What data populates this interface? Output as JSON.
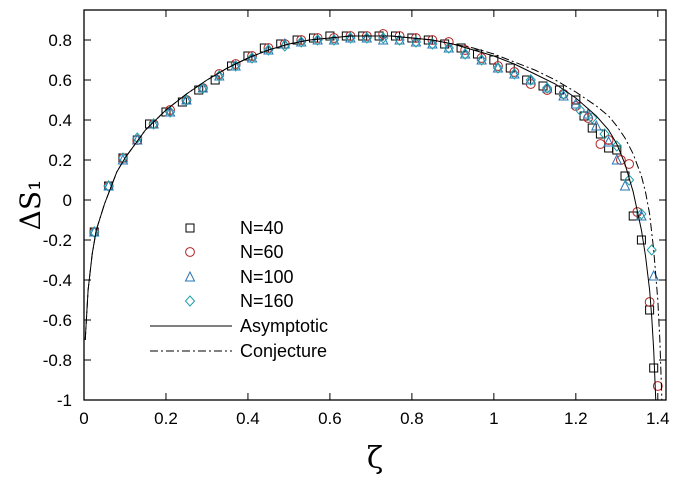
{
  "chart_data": {
    "type": "scatter",
    "title": "",
    "xlabel": "ζ",
    "ylabel": "ΔS₁",
    "xlim": [
      0,
      1.42
    ],
    "ylim": [
      -1,
      0.95
    ],
    "xticks": [
      0,
      0.2,
      0.4,
      0.6,
      0.8,
      1,
      1.2,
      1.4
    ],
    "xtick_labels": [
      "0",
      "0.2",
      "0.4",
      "0.6",
      "0.8",
      "1",
      "1.2",
      "1.4"
    ],
    "yticks": [
      -1,
      -0.8,
      -0.6,
      -0.4,
      -0.2,
      0,
      0.2,
      0.4,
      0.6,
      0.8
    ],
    "ytick_labels": [
      "-1",
      "-0.8",
      "-0.6",
      "-0.4",
      "-0.2",
      "0",
      "0.2",
      "0.4",
      "0.6",
      "0.8"
    ],
    "grid": false,
    "legend_position": "lower-left",
    "series": [
      {
        "name": "N=40",
        "kind": "markers",
        "marker": "square",
        "color": "#000000",
        "x": [
          0.025,
          0.06,
          0.095,
          0.13,
          0.16,
          0.2,
          0.24,
          0.28,
          0.32,
          0.36,
          0.4,
          0.44,
          0.48,
          0.52,
          0.56,
          0.6,
          0.64,
          0.68,
          0.72,
          0.76,
          0.8,
          0.84,
          0.88,
          0.92,
          0.96,
          1.0,
          1.04,
          1.08,
          1.12,
          1.16,
          1.2,
          1.22,
          1.24,
          1.26,
          1.28,
          1.3,
          1.32,
          1.34,
          1.36,
          1.38,
          1.39
        ],
        "y": [
          -0.16,
          0.07,
          0.21,
          0.3,
          0.38,
          0.44,
          0.49,
          0.55,
          0.6,
          0.67,
          0.72,
          0.76,
          0.78,
          0.8,
          0.81,
          0.82,
          0.82,
          0.82,
          0.82,
          0.82,
          0.81,
          0.8,
          0.78,
          0.76,
          0.73,
          0.7,
          0.66,
          0.6,
          0.57,
          0.55,
          0.5,
          0.42,
          0.36,
          0.33,
          0.26,
          0.25,
          0.12,
          -0.08,
          -0.2,
          -0.55,
          -0.84
        ]
      },
      {
        "name": "N=60",
        "kind": "markers",
        "marker": "circle",
        "color": "#b22222",
        "x": [
          0.025,
          0.06,
          0.095,
          0.13,
          0.17,
          0.21,
          0.25,
          0.29,
          0.33,
          0.37,
          0.41,
          0.45,
          0.49,
          0.53,
          0.57,
          0.61,
          0.65,
          0.69,
          0.73,
          0.77,
          0.81,
          0.85,
          0.89,
          0.93,
          0.97,
          1.01,
          1.05,
          1.09,
          1.13,
          1.17,
          1.2,
          1.23,
          1.26,
          1.28,
          1.31,
          1.33,
          1.35,
          1.38,
          1.4
        ],
        "y": [
          -0.16,
          0.07,
          0.21,
          0.3,
          0.38,
          0.45,
          0.5,
          0.56,
          0.63,
          0.68,
          0.72,
          0.76,
          0.78,
          0.8,
          0.81,
          0.81,
          0.82,
          0.82,
          0.83,
          0.82,
          0.81,
          0.8,
          0.79,
          0.75,
          0.71,
          0.67,
          0.64,
          0.58,
          0.55,
          0.53,
          0.47,
          0.41,
          0.28,
          0.3,
          0.2,
          0.18,
          -0.06,
          -0.51,
          -0.93
        ]
      },
      {
        "name": "N=100",
        "kind": "markers",
        "marker": "triangle",
        "color": "#2a74b6",
        "x": [
          0.025,
          0.06,
          0.095,
          0.13,
          0.17,
          0.21,
          0.25,
          0.29,
          0.33,
          0.37,
          0.41,
          0.45,
          0.49,
          0.53,
          0.57,
          0.61,
          0.65,
          0.69,
          0.73,
          0.77,
          0.81,
          0.85,
          0.89,
          0.93,
          0.97,
          1.01,
          1.05,
          1.09,
          1.13,
          1.17,
          1.2,
          1.23,
          1.25,
          1.28,
          1.3,
          1.32,
          1.36,
          1.39
        ],
        "y": [
          -0.16,
          0.07,
          0.2,
          0.3,
          0.38,
          0.44,
          0.5,
          0.56,
          0.62,
          0.67,
          0.71,
          0.75,
          0.78,
          0.79,
          0.8,
          0.8,
          0.81,
          0.81,
          0.8,
          0.8,
          0.79,
          0.78,
          0.76,
          0.73,
          0.7,
          0.66,
          0.63,
          0.6,
          0.56,
          0.52,
          0.48,
          0.43,
          0.37,
          0.29,
          0.2,
          0.07,
          -0.08,
          -0.38
        ]
      },
      {
        "name": "N=160",
        "kind": "markers",
        "marker": "diamond",
        "color": "#20a0a8",
        "x": [
          0.025,
          0.06,
          0.095,
          0.13,
          0.17,
          0.21,
          0.25,
          0.29,
          0.33,
          0.37,
          0.41,
          0.45,
          0.49,
          0.53,
          0.57,
          0.61,
          0.65,
          0.69,
          0.73,
          0.77,
          0.81,
          0.85,
          0.89,
          0.93,
          0.97,
          1.01,
          1.05,
          1.09,
          1.13,
          1.17,
          1.21,
          1.24,
          1.27,
          1.3,
          1.33,
          1.36,
          1.385
        ],
        "y": [
          -0.16,
          0.07,
          0.21,
          0.31,
          0.38,
          0.44,
          0.5,
          0.56,
          0.62,
          0.67,
          0.71,
          0.75,
          0.77,
          0.79,
          0.8,
          0.8,
          0.81,
          0.81,
          0.81,
          0.8,
          0.79,
          0.78,
          0.76,
          0.73,
          0.7,
          0.66,
          0.63,
          0.6,
          0.56,
          0.53,
          0.45,
          0.41,
          0.33,
          0.27,
          0.1,
          -0.07,
          -0.25
        ]
      },
      {
        "name": "Asymptotic",
        "kind": "line",
        "dash": "solid",
        "color": "#000000",
        "x": [
          0.003,
          0.01,
          0.02,
          0.03,
          0.05,
          0.08,
          0.1,
          0.15,
          0.2,
          0.25,
          0.3,
          0.35,
          0.4,
          0.45,
          0.5,
          0.55,
          0.6,
          0.65,
          0.7,
          0.75,
          0.8,
          0.85,
          0.9,
          0.95,
          1.0,
          1.05,
          1.1,
          1.15,
          1.2,
          1.25,
          1.28,
          1.3,
          1.32,
          1.34,
          1.36,
          1.37,
          1.38,
          1.385,
          1.39,
          1.395
        ],
        "y": [
          -0.7,
          -0.45,
          -0.27,
          -0.15,
          -0.02,
          0.14,
          0.21,
          0.35,
          0.45,
          0.53,
          0.6,
          0.66,
          0.71,
          0.75,
          0.78,
          0.8,
          0.81,
          0.82,
          0.82,
          0.82,
          0.81,
          0.8,
          0.78,
          0.75,
          0.72,
          0.68,
          0.63,
          0.58,
          0.51,
          0.42,
          0.35,
          0.28,
          0.18,
          0.04,
          -0.15,
          -0.28,
          -0.45,
          -0.58,
          -0.75,
          -1.0
        ]
      },
      {
        "name": "Conjecture",
        "kind": "line",
        "dash": "dashdot",
        "color": "#000000",
        "x": [
          0.003,
          0.01,
          0.02,
          0.03,
          0.05,
          0.08,
          0.1,
          0.15,
          0.2,
          0.25,
          0.3,
          0.35,
          0.4,
          0.45,
          0.5,
          0.55,
          0.6,
          0.65,
          0.7,
          0.75,
          0.8,
          0.85,
          0.9,
          0.95,
          1.0,
          1.05,
          1.1,
          1.15,
          1.2,
          1.25,
          1.28,
          1.3,
          1.32,
          1.34,
          1.36,
          1.37,
          1.38,
          1.39,
          1.4,
          1.405,
          1.41
        ],
        "y": [
          -0.7,
          -0.45,
          -0.27,
          -0.15,
          -0.02,
          0.14,
          0.21,
          0.35,
          0.45,
          0.53,
          0.6,
          0.66,
          0.71,
          0.75,
          0.78,
          0.8,
          0.81,
          0.82,
          0.82,
          0.82,
          0.81,
          0.8,
          0.78,
          0.76,
          0.73,
          0.69,
          0.65,
          0.6,
          0.54,
          0.47,
          0.42,
          0.37,
          0.31,
          0.23,
          0.12,
          0.04,
          -0.07,
          -0.25,
          -0.5,
          -0.7,
          -1.0
        ]
      }
    ]
  }
}
